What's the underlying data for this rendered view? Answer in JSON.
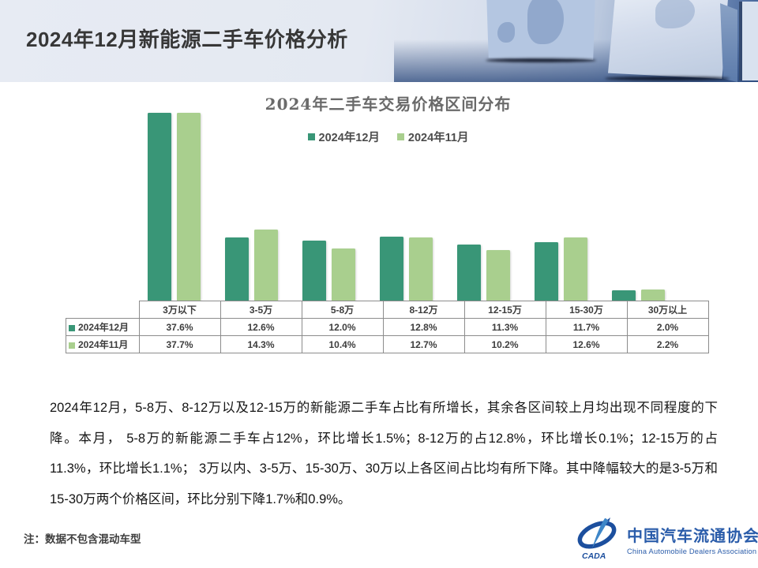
{
  "slide": {
    "title": "2024年12月新能源二手车价格分析"
  },
  "chart_data": {
    "type": "bar",
    "title": "2024年二手车交易价格区间分布",
    "categories": [
      "3万以下",
      "3-5万",
      "5-8万",
      "8-12万",
      "12-15万",
      "15-30万",
      "30万以上"
    ],
    "series": [
      {
        "name": "2024年12月",
        "color": "#399677",
        "values": [
          37.6,
          12.6,
          12.0,
          12.8,
          11.3,
          11.7,
          2.0
        ]
      },
      {
        "name": "2024年11月",
        "color": "#a9cf8e",
        "values": [
          37.7,
          14.3,
          10.4,
          12.7,
          10.2,
          12.6,
          2.2
        ]
      }
    ],
    "value_suffix": "%",
    "ylim": [
      0,
      40
    ],
    "grid": false,
    "legend_position": "top-center",
    "data_table_shown": true
  },
  "analysis": {
    "paragraph": "2024年12月，5-8万、8-12万以及12-15万的新能源二手车占比有所增长，其余各区间较上月均出现不同程度的下降。本月， 5-8万的新能源二手车占12%，环比增长1.5%；8-12万的占12.8%，环比增长0.1%；12-15万的占11.3%，环比增长1.1%； 3万以内、3-5万、15-30万、30万以上各区间占比均有所下降。其中降幅较大的是3-5万和15-30万两个价格区间，环比分别下降1.7%和0.9%。"
  },
  "note": {
    "text": "注：数据不包含混动车型"
  },
  "logo": {
    "abbr": "CADA",
    "name_cn": "中国汽车流通协会",
    "name_en": "China Automobile Dealers Association",
    "color": "#2a5caa"
  }
}
